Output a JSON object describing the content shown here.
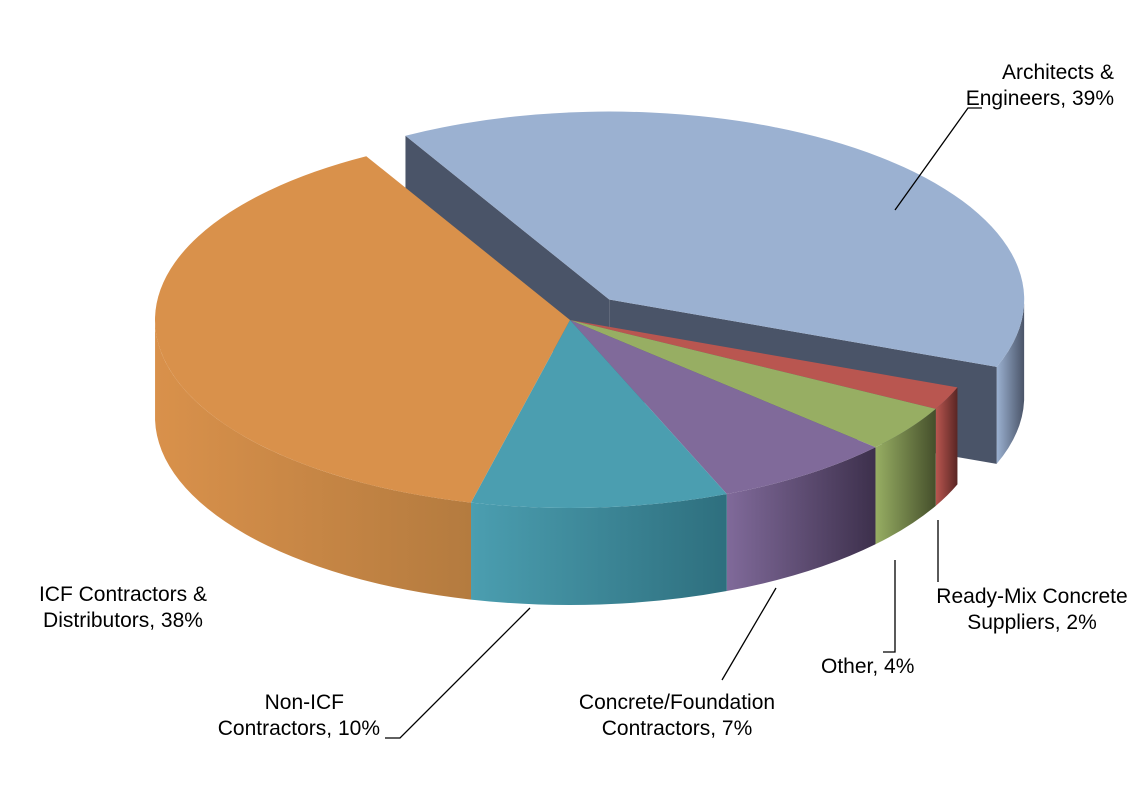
{
  "chart_data": {
    "type": "pie",
    "style": "3d-exploded",
    "title": "",
    "slices": [
      {
        "line1": "Architects &",
        "line2": "Engineers, 39%",
        "name": "Architects & Engineers",
        "value": 39,
        "color": "#9BB1D1",
        "side_color": "#4A5468",
        "exploded": true
      },
      {
        "line1": "Ready-Mix Concrete",
        "line2": "Suppliers, 2%",
        "name": "Ready-Mix Concrete Suppliers",
        "value": 2,
        "color": "#B95650",
        "side_color": "#5A2624",
        "exploded": false
      },
      {
        "line1": "Other, 4%",
        "line2": "",
        "name": "Other",
        "value": 4,
        "color": "#97AE63",
        "side_color": "#454F2B",
        "exploded": false
      },
      {
        "line1": "Concrete/Foundation",
        "line2": "Contractors, 7%",
        "name": "Concrete/Foundation Contractors",
        "value": 7,
        "color": "#806A9A",
        "side_color": "#3D304C",
        "exploded": false
      },
      {
        "line1": "Non-ICF",
        "line2": "Contractors, 10%",
        "name": "Non-ICF Contractors",
        "value": 10,
        "color": "#4B9EB0",
        "side_color": "#2E6F7E",
        "exploded": false
      },
      {
        "line1": "ICF Contractors &",
        "line2": "Distributors, 38%",
        "name": "ICF Contractors & Distributors",
        "value": 38,
        "color": "#D9914B",
        "side_color": "#B47B3F",
        "exploded": false
      }
    ]
  }
}
